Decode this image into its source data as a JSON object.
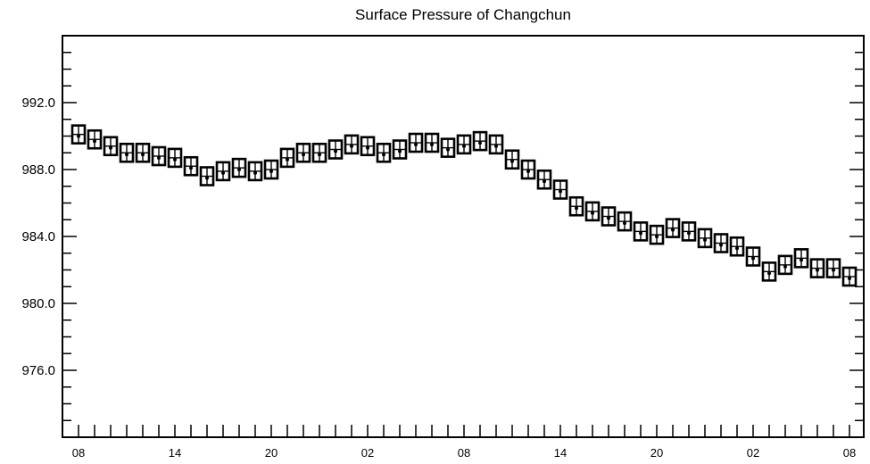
{
  "chart_data": {
    "type": "scatter",
    "title": "Surface Pressure of Changchun",
    "xlabel": "",
    "ylabel": "",
    "ylim": [
      972.0,
      996.0
    ],
    "y_ticks": [
      976.0,
      980.0,
      984.0,
      988.0,
      992.0
    ],
    "y_tick_labels": [
      "976.0",
      "980.0",
      "984.0",
      "988.0",
      "992.0"
    ],
    "x_tick_labels": [
      "08",
      "14",
      "20",
      "02",
      "08",
      "14",
      "20",
      "02",
      "08"
    ],
    "x_hours": [
      0,
      6,
      12,
      18,
      24,
      30,
      36,
      42,
      48
    ],
    "x_unit": "hour",
    "grid": false,
    "legend": "none",
    "series": [
      {
        "marker": "box-whisker",
        "x": [
          0,
          1,
          2,
          3,
          4,
          5,
          6,
          7,
          8,
          9,
          10,
          11,
          12,
          13,
          14,
          15,
          16,
          17,
          18,
          19,
          20,
          21,
          22,
          23,
          24,
          25,
          26,
          27,
          28,
          29,
          30,
          31,
          32,
          33,
          34,
          35,
          36,
          37,
          38,
          39,
          40,
          41,
          42,
          43,
          44,
          45,
          46,
          47,
          48
        ],
        "values": [
          990.1,
          989.8,
          989.4,
          989.0,
          989.0,
          988.8,
          988.7,
          988.2,
          987.6,
          987.9,
          988.1,
          987.9,
          988.0,
          988.7,
          989.0,
          989.0,
          989.2,
          989.5,
          989.4,
          989.0,
          989.2,
          989.6,
          989.6,
          989.3,
          989.5,
          989.7,
          989.5,
          988.6,
          988.0,
          987.4,
          986.8,
          985.8,
          985.5,
          985.2,
          984.9,
          984.3,
          984.1,
          984.5,
          984.3,
          983.9,
          983.6,
          983.4,
          982.8,
          981.9,
          982.3,
          982.7,
          982.1,
          982.1,
          981.6
        ]
      }
    ]
  }
}
